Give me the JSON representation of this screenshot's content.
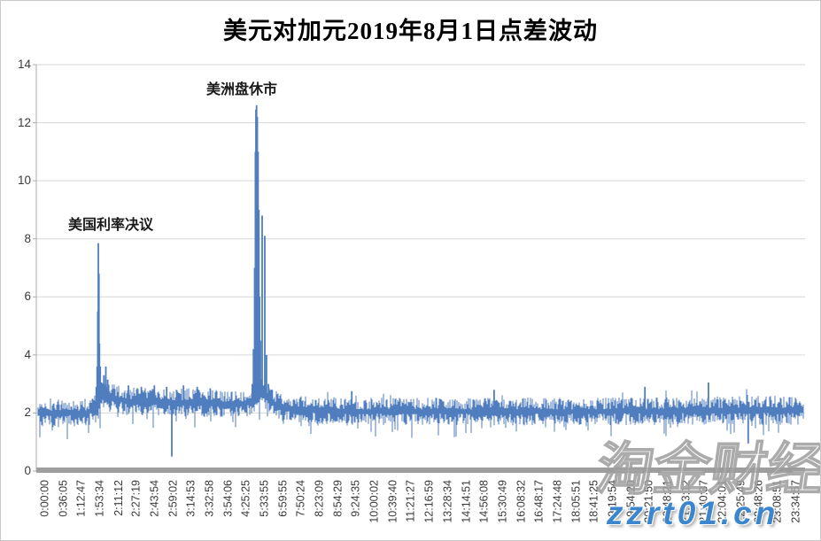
{
  "chart_data": {
    "type": "line",
    "title": "美元对加元2019年8月1日点差波动",
    "xlabel": "",
    "ylabel": "",
    "ylim": [
      0,
      14
    ],
    "yticks": [
      0,
      2,
      4,
      6,
      8,
      10,
      12,
      14
    ],
    "grid": "horizontal-on",
    "legend": "none",
    "x_tick_label_rotation": -90,
    "x_tick_labels": [
      "0:00:00",
      "0:36:05",
      "1:12:47",
      "1:53:34",
      "2:11:12",
      "2:27:19",
      "2:43:54",
      "2:59:02",
      "3:14:53",
      "3:32:58",
      "3:54:06",
      "4:25:25",
      "5:33:55",
      "6:59:55",
      "7:50:24",
      "8:23:09",
      "8:54:29",
      "9:24:35",
      "10:00:02",
      "10:39:40",
      "11:21:27",
      "12:16:59",
      "13:28:34",
      "14:14:51",
      "14:56:08",
      "15:30:49",
      "16:08:32",
      "16:48:17",
      "17:24:48",
      "18:05:51",
      "18:41:25",
      "19:19:54",
      "19:54:20",
      "20:21:50",
      "20:48:21",
      "21:13:12",
      "21:40:37",
      "22:04:01",
      "22:25:49",
      "22:48:26",
      "23:08:51",
      "23:34:57"
    ],
    "series": [
      {
        "name": "点差",
        "color": "#4f7dbd"
      }
    ],
    "baseline_mean": 2.0,
    "noise_seed": 12,
    "envelope": [
      [
        0.0,
        2.0,
        0.5
      ],
      [
        0.065,
        2.0,
        0.5
      ],
      [
        0.075,
        2.2,
        0.55
      ],
      [
        0.085,
        2.55,
        0.5
      ],
      [
        0.12,
        2.4,
        0.5
      ],
      [
        0.2,
        2.35,
        0.5
      ],
      [
        0.26,
        2.3,
        0.45
      ],
      [
        0.278,
        2.35,
        0.45
      ],
      [
        0.29,
        2.7,
        0.5
      ],
      [
        0.3,
        2.5,
        0.45
      ],
      [
        0.32,
        2.15,
        0.45
      ],
      [
        0.4,
        2.05,
        0.48
      ],
      [
        0.7,
        2.05,
        0.48
      ],
      [
        1.0,
        2.1,
        0.5
      ]
    ],
    "events": [
      {
        "f": 0.076,
        "v": 2.9
      },
      {
        "f": 0.0772,
        "v": 3.6
      },
      {
        "f": 0.078,
        "v": 5.5
      },
      {
        "f": 0.0787,
        "v": 7.85
      },
      {
        "f": 0.0795,
        "v": 6.8
      },
      {
        "f": 0.0802,
        "v": 4.4
      },
      {
        "f": 0.0812,
        "v": 3.6
      },
      {
        "f": 0.083,
        "v": 3.05
      },
      {
        "f": 0.086,
        "v": 3.3
      },
      {
        "f": 0.0885,
        "v": 3.6
      },
      {
        "f": 0.091,
        "v": 3.15
      },
      {
        "f": 0.118,
        "v": 2.95
      },
      {
        "f": 0.135,
        "v": 2.9
      },
      {
        "f": 0.152,
        "v": 2.95
      },
      {
        "f": 0.168,
        "v": 2.9
      },
      {
        "f": 0.1748,
        "v": 0.5
      },
      {
        "f": 0.19,
        "v": 2.95
      },
      {
        "f": 0.208,
        "v": 2.9
      },
      {
        "f": 0.225,
        "v": 2.85
      },
      {
        "f": 0.28,
        "v": 3.0
      },
      {
        "f": 0.2815,
        "v": 4.2
      },
      {
        "f": 0.283,
        "v": 7.0
      },
      {
        "f": 0.284,
        "v": 11.0
      },
      {
        "f": 0.2847,
        "v": 12.45
      },
      {
        "f": 0.2855,
        "v": 12.6
      },
      {
        "f": 0.2865,
        "v": 12.2
      },
      {
        "f": 0.2875,
        "v": 11.0
      },
      {
        "f": 0.2885,
        "v": 9.0
      },
      {
        "f": 0.2895,
        "v": 6.0
      },
      {
        "f": 0.2905,
        "v": 4.5
      },
      {
        "f": 0.2928,
        "v": 8.8
      },
      {
        "f": 0.2963,
        "v": 8.1
      },
      {
        "f": 0.2985,
        "v": 4.0
      },
      {
        "f": 0.301,
        "v": 3.0
      },
      {
        "f": 0.306,
        "v": 2.8
      },
      {
        "f": 0.41,
        "v": 2.75
      },
      {
        "f": 0.596,
        "v": 2.8
      },
      {
        "f": 0.793,
        "v": 2.9
      },
      {
        "f": 0.876,
        "v": 3.05
      },
      {
        "f": 0.928,
        "v": 0.95
      }
    ],
    "annotations": [
      {
        "text": "美国利率决议",
        "points_to": "spike at 1:53:34, peak 7.85"
      },
      {
        "text": "美洲盘休市",
        "points_to": "spike at 5:33:55, peak 12.6"
      }
    ],
    "axis_colors": {
      "gridline": "#d6d6d6",
      "y_axis": "#ababab",
      "x_axis_band": "#9e9e9e"
    }
  },
  "watermark": {
    "brand": "淘金财经",
    "url": "zzrt01.cn",
    "url_color": "#3c86cd"
  }
}
